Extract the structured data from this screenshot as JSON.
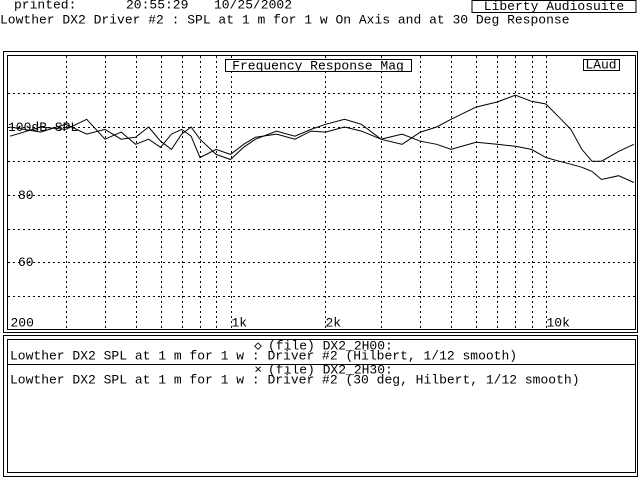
{
  "header": {
    "printed_label": "printed:",
    "time": "20:55:29",
    "date": "10/25/2002",
    "app": "Liberty Audiosuite"
  },
  "chart_data": {
    "type": "line",
    "title": "Lowther DX2 Driver #2 : SPL at 1 m for 1 w On Axis and at 30 Deg Response",
    "plot_label": "Frequency Response Mag",
    "badge": "LAud",
    "xscale": "log",
    "grid": true,
    "xlim": [
      197,
      19300
    ],
    "ylim": [
      40,
      121
    ],
    "xticks": [
      {
        "value": 200,
        "label": "200"
      },
      {
        "value": 1000,
        "label": "1k"
      },
      {
        "value": 2000,
        "label": "2k"
      },
      {
        "value": 10000,
        "label": "10k"
      }
    ],
    "x_minor_ticks": [
      300,
      400,
      500,
      600,
      700,
      800,
      900,
      3000,
      4000,
      5000,
      6000,
      7000,
      8000,
      9000
    ],
    "yticks": [
      60,
      80,
      {
        "value": 100,
        "label": "100dB SPL"
      }
    ],
    "y_minor_ticks": [
      50,
      70,
      90,
      110
    ],
    "x": [
      200,
      250,
      300,
      350,
      400,
      450,
      500,
      550,
      600,
      650,
      700,
      750,
      800,
      900,
      1000,
      1100,
      1200,
      1400,
      1600,
      1800,
      2000,
      2300,
      2600,
      3000,
      3500,
      4000,
      4500,
      5000,
      6000,
      7000,
      8000,
      9000,
      10000,
      11000,
      12000,
      13000,
      14000,
      15000,
      17000,
      19000
    ],
    "series": [
      {
        "name": "(file) DX2_2H00:",
        "marker": "◇",
        "description": "Lowther DX2 SPL at 1 m for 1 w : Driver #2 (Hilbert, 1/12 smooth)",
        "color": "#000000",
        "values": [
          97.3,
          100,
          99.3,
          102.3,
          96.4,
          98.5,
          94.9,
          96.4,
          94,
          97.9,
          99.3,
          97.3,
          91,
          93.4,
          91.9,
          94.9,
          97,
          97.9,
          96.4,
          98.8,
          98.5,
          100,
          98.8,
          96.4,
          94.9,
          98.5,
          100,
          102.3,
          105.9,
          107.4,
          109.4,
          107.6,
          106.8,
          102.9,
          99.3,
          93.4,
          89.9,
          89.9,
          92.8,
          94.9
        ]
      },
      {
        "name": "(file) DX2_2H30:",
        "marker": "×",
        "description": "Lowther DX2 SPL at 1 m for 1 w : Driver #2 (30 deg, Hilbert, 1/12 smooth)",
        "color": "#000000",
        "values": [
          100,
          98.5,
          100.8,
          97.9,
          99.3,
          96.4,
          97,
          100,
          95.8,
          93.4,
          97.9,
          100,
          96.4,
          91.9,
          90.4,
          94,
          96.4,
          98.8,
          97.3,
          99.3,
          100.8,
          102.3,
          100.8,
          96.4,
          97.9,
          95.8,
          94.9,
          93.4,
          95.5,
          94.9,
          94.3,
          93.4,
          91,
          89.9,
          89,
          88.1,
          86.9,
          84.5,
          85.6,
          83.6
        ]
      }
    ]
  }
}
